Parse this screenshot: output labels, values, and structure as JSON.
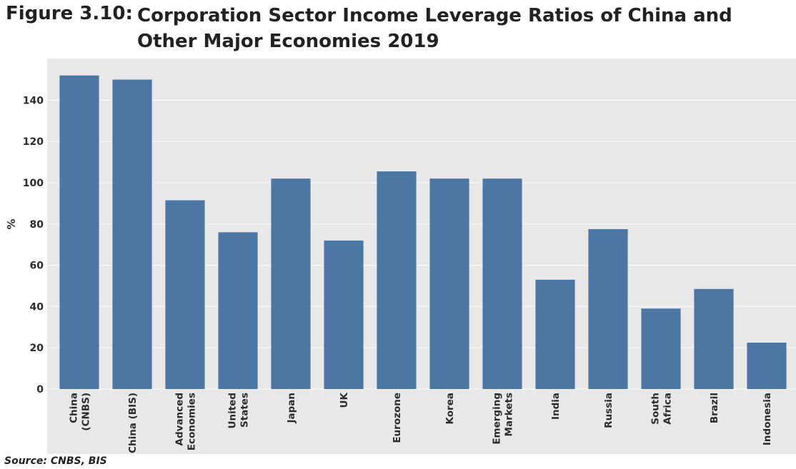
{
  "figure_label": "Figure 3.10:",
  "title": "Corporation Sector Income Leverage Ratios of China and Other Major Economies 2019",
  "source": "Source: CNBS, BIS",
  "colors": {
    "bar": "#4c77a5",
    "plot_bg": "#e8e8e8",
    "grid": "#f6f6f6",
    "text": "#2b2b2b"
  },
  "chart_data": {
    "type": "bar",
    "title": "Corporation Sector Income Leverage Ratios of China and Other Major Economies 2019",
    "xlabel": "",
    "ylabel": "%",
    "ylim": [
      0,
      155
    ],
    "yticks": [
      0,
      20,
      40,
      60,
      80,
      100,
      120,
      140
    ],
    "grid": true,
    "categories": [
      "China (CNBS)",
      "China (BIS)",
      "Advanced Economies",
      "United States",
      "Japan",
      "UK",
      "Eurozone",
      "Korea",
      "Emerging Markets",
      "India",
      "Russia",
      "South Africa",
      "Brazil",
      "Indonesia"
    ],
    "category_lines": [
      [
        "China",
        "(CNBS)"
      ],
      [
        "China (BIS)"
      ],
      [
        "Advanced",
        "Economies"
      ],
      [
        "United",
        "States"
      ],
      [
        "Japan"
      ],
      [
        "UK"
      ],
      [
        "Eurozone"
      ],
      [
        "Korea"
      ],
      [
        "Emerging",
        "Markets"
      ],
      [
        "India"
      ],
      [
        "Russia"
      ],
      [
        "South",
        "Africa"
      ],
      [
        "Brazil"
      ],
      [
        "Indonesia"
      ]
    ],
    "values": [
      152,
      150,
      91.5,
      76,
      102,
      72,
      105.5,
      102,
      102,
      53,
      77.5,
      39,
      48.5,
      22.5
    ]
  }
}
